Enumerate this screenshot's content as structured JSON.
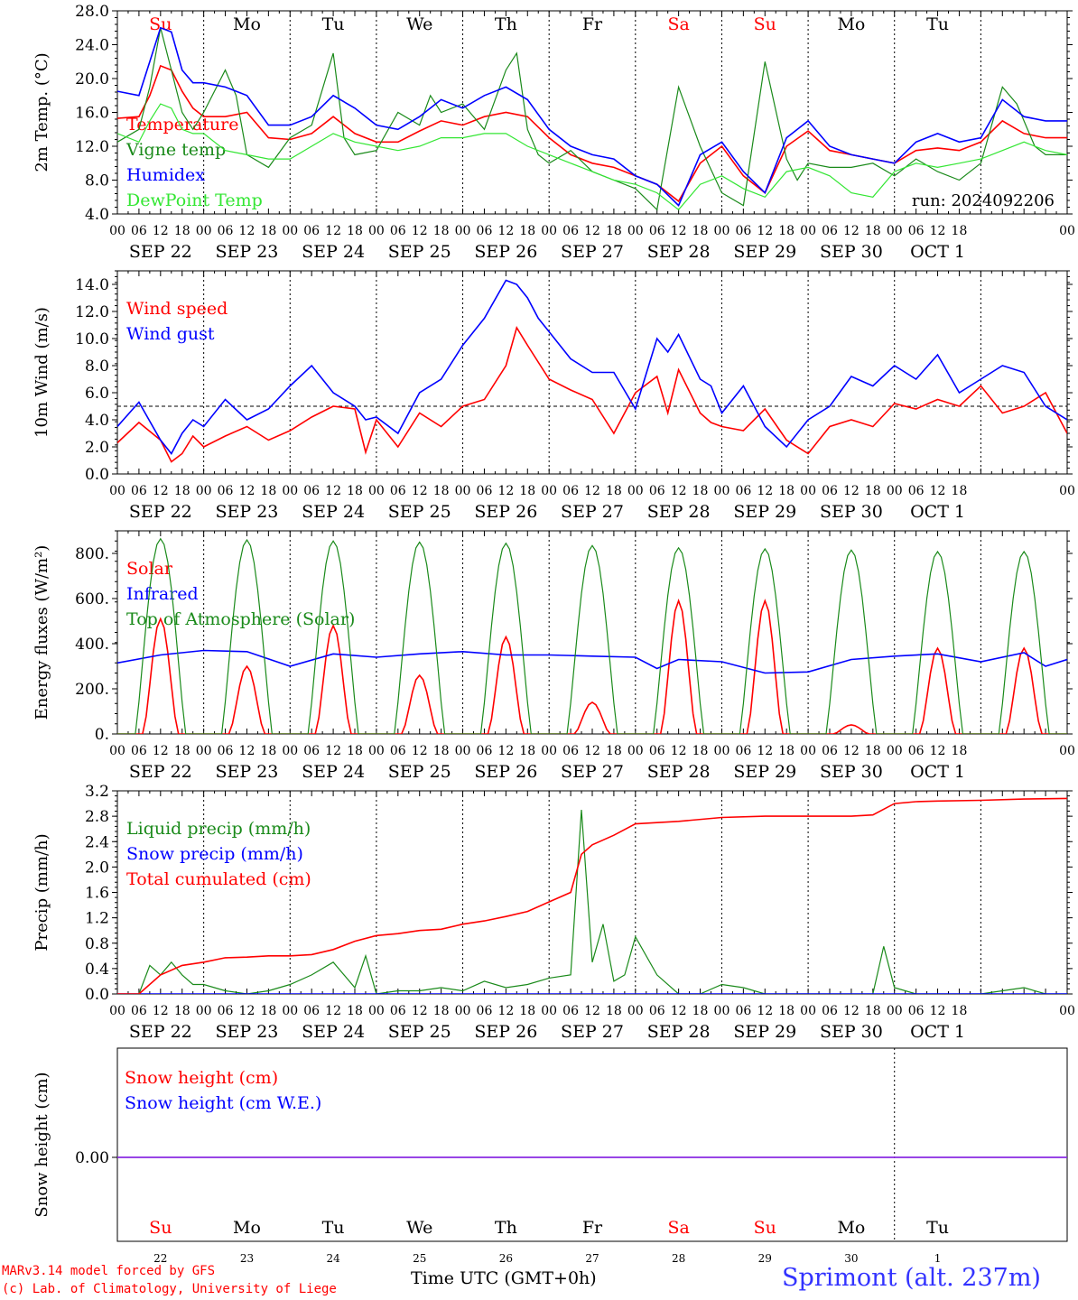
{
  "colors": {
    "red": "#ff0000",
    "green": "#1a8a1a",
    "blue": "#0000ff",
    "lightgreen": "#33e633",
    "purple": "#8a2be2",
    "black": "#000000"
  },
  "days": {
    "labels": [
      "Su",
      "Mo",
      "Tu",
      "We",
      "Th",
      "Fr",
      "Sa",
      "Su",
      "Mo",
      "Tu"
    ],
    "label_colors": [
      "red",
      "black",
      "black",
      "black",
      "black",
      "black",
      "red",
      "red",
      "black",
      "black"
    ],
    "dates": [
      "SEP 22",
      "SEP 23",
      "SEP 24",
      "SEP 25",
      "SEP 26",
      "SEP 27",
      "SEP 28",
      "SEP 29",
      "SEP 30",
      "OCT  1"
    ],
    "bottom_numbers": [
      "22",
      "23",
      "24",
      "25",
      "26",
      "27",
      "28",
      "29",
      "30",
      "1"
    ],
    "hour_ticks": [
      "00",
      "06",
      "12",
      "18"
    ],
    "final_tick": "00"
  },
  "run_label": "run: 2024092206",
  "footer": {
    "model": "MARv3.14 model forced by GFS",
    "copyright": "(c) Lab. of Climatology, University of Liege",
    "time_label": "Time UTC (GMT+0h)",
    "station": "Sprimont (alt. 237m)"
  },
  "chart_data": [
    {
      "type": "line",
      "ylabel": "2m Temp. (°C)",
      "ylim": [
        4,
        28
      ],
      "yticks": [
        "4.0",
        "8.0",
        "12.0",
        "16.0",
        "20.0",
        "24.0",
        "28.0"
      ],
      "x_unit": "hours since SEP 22 00 UTC",
      "series": [
        {
          "name": "Temperature",
          "color": "red",
          "x": [
            0,
            6,
            9,
            12,
            15,
            18,
            21,
            24,
            30,
            36,
            42,
            48,
            54,
            60,
            66,
            72,
            78,
            84,
            90,
            96,
            102,
            108,
            114,
            120,
            126,
            132,
            138,
            144,
            150,
            156,
            162,
            168,
            174,
            180,
            186,
            192,
            198,
            204,
            210,
            216,
            222,
            228,
            234,
            240,
            246,
            252,
            258,
            264
          ],
          "values": [
            15.3,
            15.5,
            18,
            21.5,
            21,
            18.5,
            16.5,
            15.5,
            15.5,
            16,
            13,
            12.8,
            13.5,
            15.5,
            13.5,
            12.5,
            12.5,
            13.8,
            15,
            14.5,
            15.5,
            16,
            15.5,
            13,
            11,
            10,
            9.5,
            8.5,
            7.5,
            5.5,
            10,
            12,
            8.5,
            6.5,
            12,
            13.8,
            11.5,
            11,
            10.5,
            10,
            11.5,
            11.8,
            11.5,
            12.5,
            15,
            13.5,
            13,
            13
          ]
        },
        {
          "name": "Vigne temp",
          "color": "green",
          "x": [
            0,
            6,
            9,
            12,
            15,
            18,
            21,
            24,
            30,
            33,
            36,
            42,
            48,
            54,
            60,
            63,
            66,
            72,
            78,
            84,
            87,
            90,
            96,
            102,
            108,
            111,
            114,
            117,
            120,
            126,
            132,
            138,
            144,
            150,
            156,
            162,
            168,
            174,
            180,
            186,
            189,
            192,
            198,
            204,
            210,
            216,
            222,
            228,
            234,
            240,
            246,
            250,
            255,
            258,
            264
          ],
          "values": [
            12.5,
            14,
            19,
            26,
            21,
            16,
            14,
            16,
            21,
            18,
            11,
            9.5,
            13,
            14.5,
            23,
            13,
            11,
            11.5,
            16,
            14.5,
            18,
            16,
            17,
            14,
            21,
            23,
            14,
            11,
            10,
            11.5,
            9,
            8,
            7,
            4.5,
            19,
            12,
            6.5,
            5,
            22,
            10.5,
            8,
            10,
            9.5,
            9.5,
            10,
            8.5,
            10.5,
            9,
            8,
            10,
            19,
            17,
            12,
            11,
            11
          ]
        },
        {
          "name": "Humidex",
          "color": "blue",
          "x": [
            0,
            6,
            9,
            12,
            15,
            18,
            21,
            24,
            30,
            36,
            42,
            48,
            54,
            60,
            66,
            72,
            78,
            84,
            90,
            96,
            102,
            108,
            114,
            120,
            126,
            132,
            138,
            144,
            150,
            156,
            162,
            168,
            174,
            180,
            186,
            192,
            198,
            204,
            210,
            216,
            222,
            228,
            234,
            240,
            246,
            252,
            258,
            264
          ],
          "values": [
            18.5,
            18,
            22,
            26,
            25.5,
            21,
            19.5,
            19.5,
            19,
            18,
            14.5,
            14.5,
            15.5,
            18,
            16.5,
            14.5,
            14,
            15.5,
            17.5,
            16.5,
            18,
            19,
            17.5,
            14,
            12,
            11,
            10.5,
            8.5,
            7.5,
            5,
            11,
            12.5,
            9,
            6.5,
            13,
            15,
            12,
            11,
            10.5,
            10,
            12.5,
            13.5,
            12.5,
            13,
            17.5,
            15.5,
            15,
            15
          ]
        },
        {
          "name": "DewPoint Temp",
          "color": "lightgreen",
          "x": [
            0,
            6,
            9,
            12,
            15,
            18,
            21,
            24,
            30,
            36,
            42,
            48,
            54,
            60,
            66,
            72,
            78,
            84,
            90,
            96,
            102,
            108,
            114,
            120,
            126,
            132,
            138,
            144,
            150,
            156,
            162,
            168,
            174,
            180,
            186,
            192,
            198,
            204,
            210,
            216,
            222,
            228,
            234,
            240,
            246,
            252,
            258,
            264
          ],
          "values": [
            13.5,
            12.5,
            15,
            17,
            16.5,
            14,
            13.5,
            13.5,
            11.5,
            11,
            10.5,
            10.5,
            12,
            13.5,
            12.5,
            12,
            11.5,
            12,
            13,
            13,
            13.5,
            13.5,
            12,
            11,
            10,
            9,
            8,
            7.5,
            6.5,
            4.5,
            7.5,
            8.5,
            7,
            6,
            9,
            9.5,
            8.5,
            6.5,
            6,
            9,
            10,
            9.5,
            10,
            10.5,
            11.5,
            12.5,
            11.5,
            11
          ]
        }
      ]
    },
    {
      "type": "line",
      "ylabel": "10m Wind (m/s)",
      "ylim": [
        0,
        15
      ],
      "yticks": [
        "0.0",
        "2.0",
        "4.0",
        "6.0",
        "8.0",
        "10.0",
        "12.0",
        "14.0"
      ],
      "reference_line": 5,
      "series": [
        {
          "name": "Wind speed",
          "color": "red",
          "x": [
            0,
            6,
            12,
            15,
            18,
            21,
            24,
            30,
            36,
            42,
            48,
            54,
            60,
            66,
            69,
            72,
            78,
            84,
            90,
            96,
            102,
            108,
            111,
            114,
            120,
            126,
            132,
            138,
            144,
            150,
            153,
            156,
            162,
            165,
            168,
            174,
            180,
            186,
            192,
            198,
            204,
            210,
            216,
            222,
            228,
            234,
            240,
            246,
            252,
            258,
            264
          ],
          "values": [
            2.3,
            3.8,
            2.5,
            0.9,
            1.5,
            2.8,
            2,
            2.8,
            3.5,
            2.5,
            3.2,
            4.2,
            5,
            4.8,
            1.6,
            4,
            2,
            4.5,
            3.5,
            5,
            5.5,
            8,
            10.8,
            9.5,
            7,
            6.2,
            5.5,
            3,
            6,
            7.2,
            4.5,
            7.7,
            4.5,
            3.8,
            3.5,
            3.2,
            4.8,
            2.5,
            1.5,
            3.5,
            4,
            3.5,
            5.2,
            4.8,
            5.5,
            5,
            6.5,
            4.5,
            5,
            6,
            3
          ]
        },
        {
          "name": "Wind gust",
          "color": "blue",
          "x": [
            0,
            6,
            12,
            15,
            18,
            21,
            24,
            30,
            36,
            42,
            48,
            54,
            60,
            66,
            69,
            72,
            78,
            84,
            90,
            96,
            102,
            108,
            111,
            114,
            117,
            120,
            126,
            132,
            138,
            144,
            150,
            153,
            156,
            162,
            165,
            168,
            174,
            180,
            186,
            192,
            198,
            204,
            210,
            216,
            222,
            228,
            234,
            240,
            246,
            252,
            258,
            264
          ],
          "values": [
            3.5,
            5.3,
            2.5,
            1.5,
            3,
            4,
            3.5,
            5.5,
            4,
            4.8,
            6.5,
            8,
            6,
            5,
            4,
            4.2,
            3,
            6,
            7,
            9.5,
            11.5,
            14.3,
            14,
            13,
            11.5,
            10.5,
            8.5,
            7.5,
            7.5,
            4.8,
            10,
            9,
            10.3,
            7,
            6.5,
            4.5,
            6.5,
            3.5,
            2,
            4,
            5,
            7.2,
            6.5,
            8,
            7,
            8.8,
            6,
            7,
            8,
            7.5,
            5,
            4
          ]
        }
      ]
    },
    {
      "type": "line",
      "ylabel": "Energy fluxes (W/m²)",
      "ylim": [
        0,
        900
      ],
      "yticks": [
        "0.",
        "200.",
        "400.",
        "600.",
        "800."
      ],
      "series": [
        {
          "name": "Solar",
          "color": "red",
          "peaks": [
            510,
            300,
            480,
            260,
            430,
            140,
            590,
            590,
            40,
            380
          ]
        },
        {
          "name": "Infrared",
          "color": "blue",
          "x": [
            0,
            12,
            24,
            36,
            48,
            60,
            72,
            84,
            96,
            108,
            120,
            132,
            144,
            150,
            156,
            168,
            180,
            192,
            204,
            216,
            228,
            240,
            252,
            258,
            264
          ],
          "values": [
            315,
            350,
            370,
            365,
            300,
            355,
            340,
            355,
            365,
            350,
            350,
            345,
            340,
            290,
            330,
            320,
            270,
            275,
            330,
            345,
            355,
            320,
            360,
            300,
            330
          ]
        },
        {
          "name": "Top of Atmosphere (Solar)",
          "color": "green",
          "peaks": [
            865,
            860,
            855,
            850,
            845,
            835,
            825,
            820,
            815,
            808
          ]
        }
      ]
    },
    {
      "type": "line",
      "ylabel": "Precip (mm/h)",
      "ylim": [
        0,
        3.2
      ],
      "yticks": [
        "0.0",
        "0.4",
        "0.8",
        "1.2",
        "1.6",
        "2.0",
        "2.4",
        "2.8",
        "3.2"
      ],
      "series": [
        {
          "name": "Liquid precip (mm/h)",
          "color": "green",
          "x": [
            0,
            6,
            9,
            12,
            15,
            18,
            21,
            24,
            30,
            36,
            42,
            48,
            54,
            60,
            66,
            69,
            72,
            78,
            84,
            90,
            96,
            102,
            108,
            114,
            120,
            126,
            129,
            132,
            135,
            138,
            141,
            144,
            150,
            156,
            162,
            168,
            174,
            180,
            186,
            192,
            198,
            204,
            210,
            213,
            216,
            222,
            228,
            234,
            240,
            246,
            252,
            258,
            264
          ],
          "values": [
            0,
            0,
            0.45,
            0.3,
            0.5,
            0.3,
            0.15,
            0.15,
            0.05,
            0,
            0.05,
            0.15,
            0.3,
            0.5,
            0.1,
            0.6,
            0,
            0.05,
            0.05,
            0.1,
            0.05,
            0.2,
            0.1,
            0.15,
            0.25,
            0.3,
            2.9,
            0.5,
            1.1,
            0.2,
            0.3,
            0.9,
            0.3,
            0,
            0,
            0.15,
            0.1,
            0,
            0,
            0,
            0,
            0,
            0,
            0.75,
            0.1,
            0,
            0,
            0,
            0,
            0.05,
            0.1,
            0,
            0
          ]
        },
        {
          "name": "Snow precip (mm/h)",
          "color": "blue",
          "x": [
            0,
            264
          ],
          "values": [
            0,
            0
          ]
        },
        {
          "name": "Total cumulated (cm)",
          "color": "red",
          "x": [
            0,
            6,
            12,
            18,
            24,
            30,
            36,
            42,
            48,
            54,
            60,
            66,
            72,
            78,
            84,
            90,
            96,
            102,
            108,
            114,
            120,
            126,
            129,
            132,
            138,
            144,
            150,
            156,
            168,
            180,
            192,
            204,
            210,
            216,
            222,
            228,
            240,
            252,
            264
          ],
          "values": [
            0,
            0,
            0.3,
            0.45,
            0.5,
            0.57,
            0.58,
            0.6,
            0.6,
            0.62,
            0.7,
            0.83,
            0.92,
            0.95,
            1.0,
            1.02,
            1.1,
            1.15,
            1.22,
            1.3,
            1.45,
            1.6,
            2.2,
            2.35,
            2.5,
            2.68,
            2.7,
            2.72,
            2.78,
            2.8,
            2.8,
            2.8,
            2.82,
            3.0,
            3.03,
            3.04,
            3.05,
            3.07,
            3.08
          ]
        }
      ]
    },
    {
      "type": "line",
      "ylabel": "Snow height (cm)",
      "yticks": [
        "0.00"
      ],
      "series": [
        {
          "name": "Snow height (cm)",
          "color": "red",
          "x": [
            0,
            264
          ],
          "values": [
            0,
            0
          ]
        },
        {
          "name": "Snow height (cm W.E.)",
          "color": "blue",
          "x": [
            0,
            264
          ],
          "values": [
            0,
            0
          ]
        }
      ]
    }
  ]
}
